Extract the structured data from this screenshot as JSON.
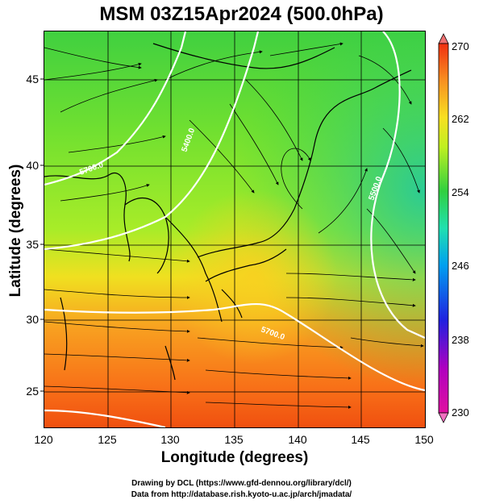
{
  "title": "MSM 03Z15Apr2024 (500.0hPa)",
  "xlabel": "Longitude (degrees)",
  "ylabel": "Latitude  (degrees)",
  "x_ticks": [
    "120",
    "125",
    "130",
    "135",
    "140",
    "145",
    "150"
  ],
  "y_ticks": [
    "25",
    "30",
    "35",
    "40",
    "45"
  ],
  "colorbar": {
    "labels": [
      "270",
      "262",
      "254",
      "246",
      "238",
      "230"
    ],
    "range": [
      230,
      270
    ],
    "colors": [
      "#e01070",
      "#b000c0",
      "#2020e0",
      "#00a0f0",
      "#20e0b0",
      "#30d040",
      "#c0f020",
      "#f8e020",
      "#f89020",
      "#f03010"
    ]
  },
  "contour_labels": [
    "5700.0",
    "5400.0",
    "5700.0",
    "5500.0"
  ],
  "credits": {
    "line1": "Drawing by DCL (https://www.gfd-dennou.org/library/dcl/)",
    "line2": "Data from http://database.rish.kyoto-u.ac.jp/arch/jmadata/"
  },
  "chart_data": {
    "type": "heatmap",
    "title": "MSM 03Z15Apr2024 (500.0hPa)",
    "xlabel": "Longitude (degrees)",
    "ylabel": "Latitude  (degrees)",
    "xlim": [
      120,
      150
    ],
    "ylim": [
      22.5,
      47.5
    ],
    "color_range": [
      230,
      270
    ],
    "overlays": [
      "streamlines",
      "geopotential height contours",
      "coastlines",
      "grid"
    ]
  }
}
